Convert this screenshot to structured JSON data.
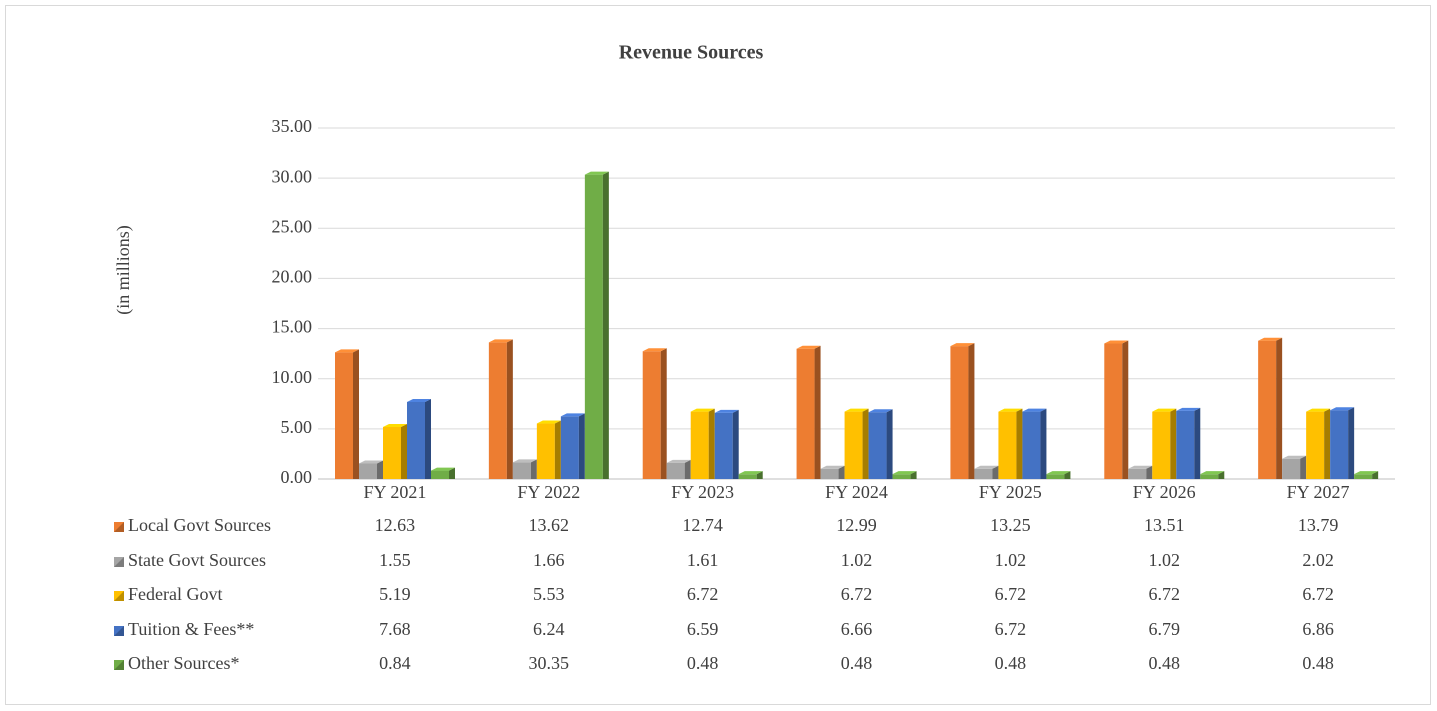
{
  "chart_data": {
    "type": "bar",
    "title": "Revenue Sources",
    "y_label": "(in millions)",
    "categories": [
      "FY 2021",
      "FY 2022",
      "FY 2023",
      "FY 2024",
      "FY 2025",
      "FY 2026",
      "FY 2027"
    ],
    "series": [
      {
        "name": "Local Govt Sources",
        "color": "#ed7d31",
        "values": [
          12.63,
          13.62,
          12.74,
          12.99,
          13.25,
          13.51,
          13.79
        ]
      },
      {
        "name": "State Govt Sources",
        "color": "#a5a5a5",
        "values": [
          1.55,
          1.66,
          1.61,
          1.02,
          1.02,
          1.02,
          2.02
        ]
      },
      {
        "name": "Federal Govt",
        "color": "#ffc000",
        "values": [
          5.19,
          5.53,
          6.72,
          6.72,
          6.72,
          6.72,
          6.72
        ]
      },
      {
        "name": "Tuition & Fees**",
        "color": "#4472c4",
        "values": [
          7.68,
          6.24,
          6.59,
          6.66,
          6.72,
          6.79,
          6.86
        ]
      },
      {
        "name": "Other Sources*",
        "color": "#70ad47",
        "values": [
          0.84,
          30.35,
          0.48,
          0.48,
          0.48,
          0.48,
          0.48
        ]
      }
    ],
    "ylim": [
      0,
      35
    ],
    "yticks": [
      {
        "value": 0,
        "label": "0.00"
      },
      {
        "value": 5,
        "label": "5.00"
      },
      {
        "value": 10,
        "label": "10.00"
      },
      {
        "value": 15,
        "label": "15.00"
      },
      {
        "value": 20,
        "label": "20.00"
      },
      {
        "value": 25,
        "label": "25.00"
      },
      {
        "value": 30,
        "label": "30.00"
      },
      {
        "value": 35,
        "label": "35.00"
      }
    ],
    "grid": true,
    "data_table": true
  }
}
